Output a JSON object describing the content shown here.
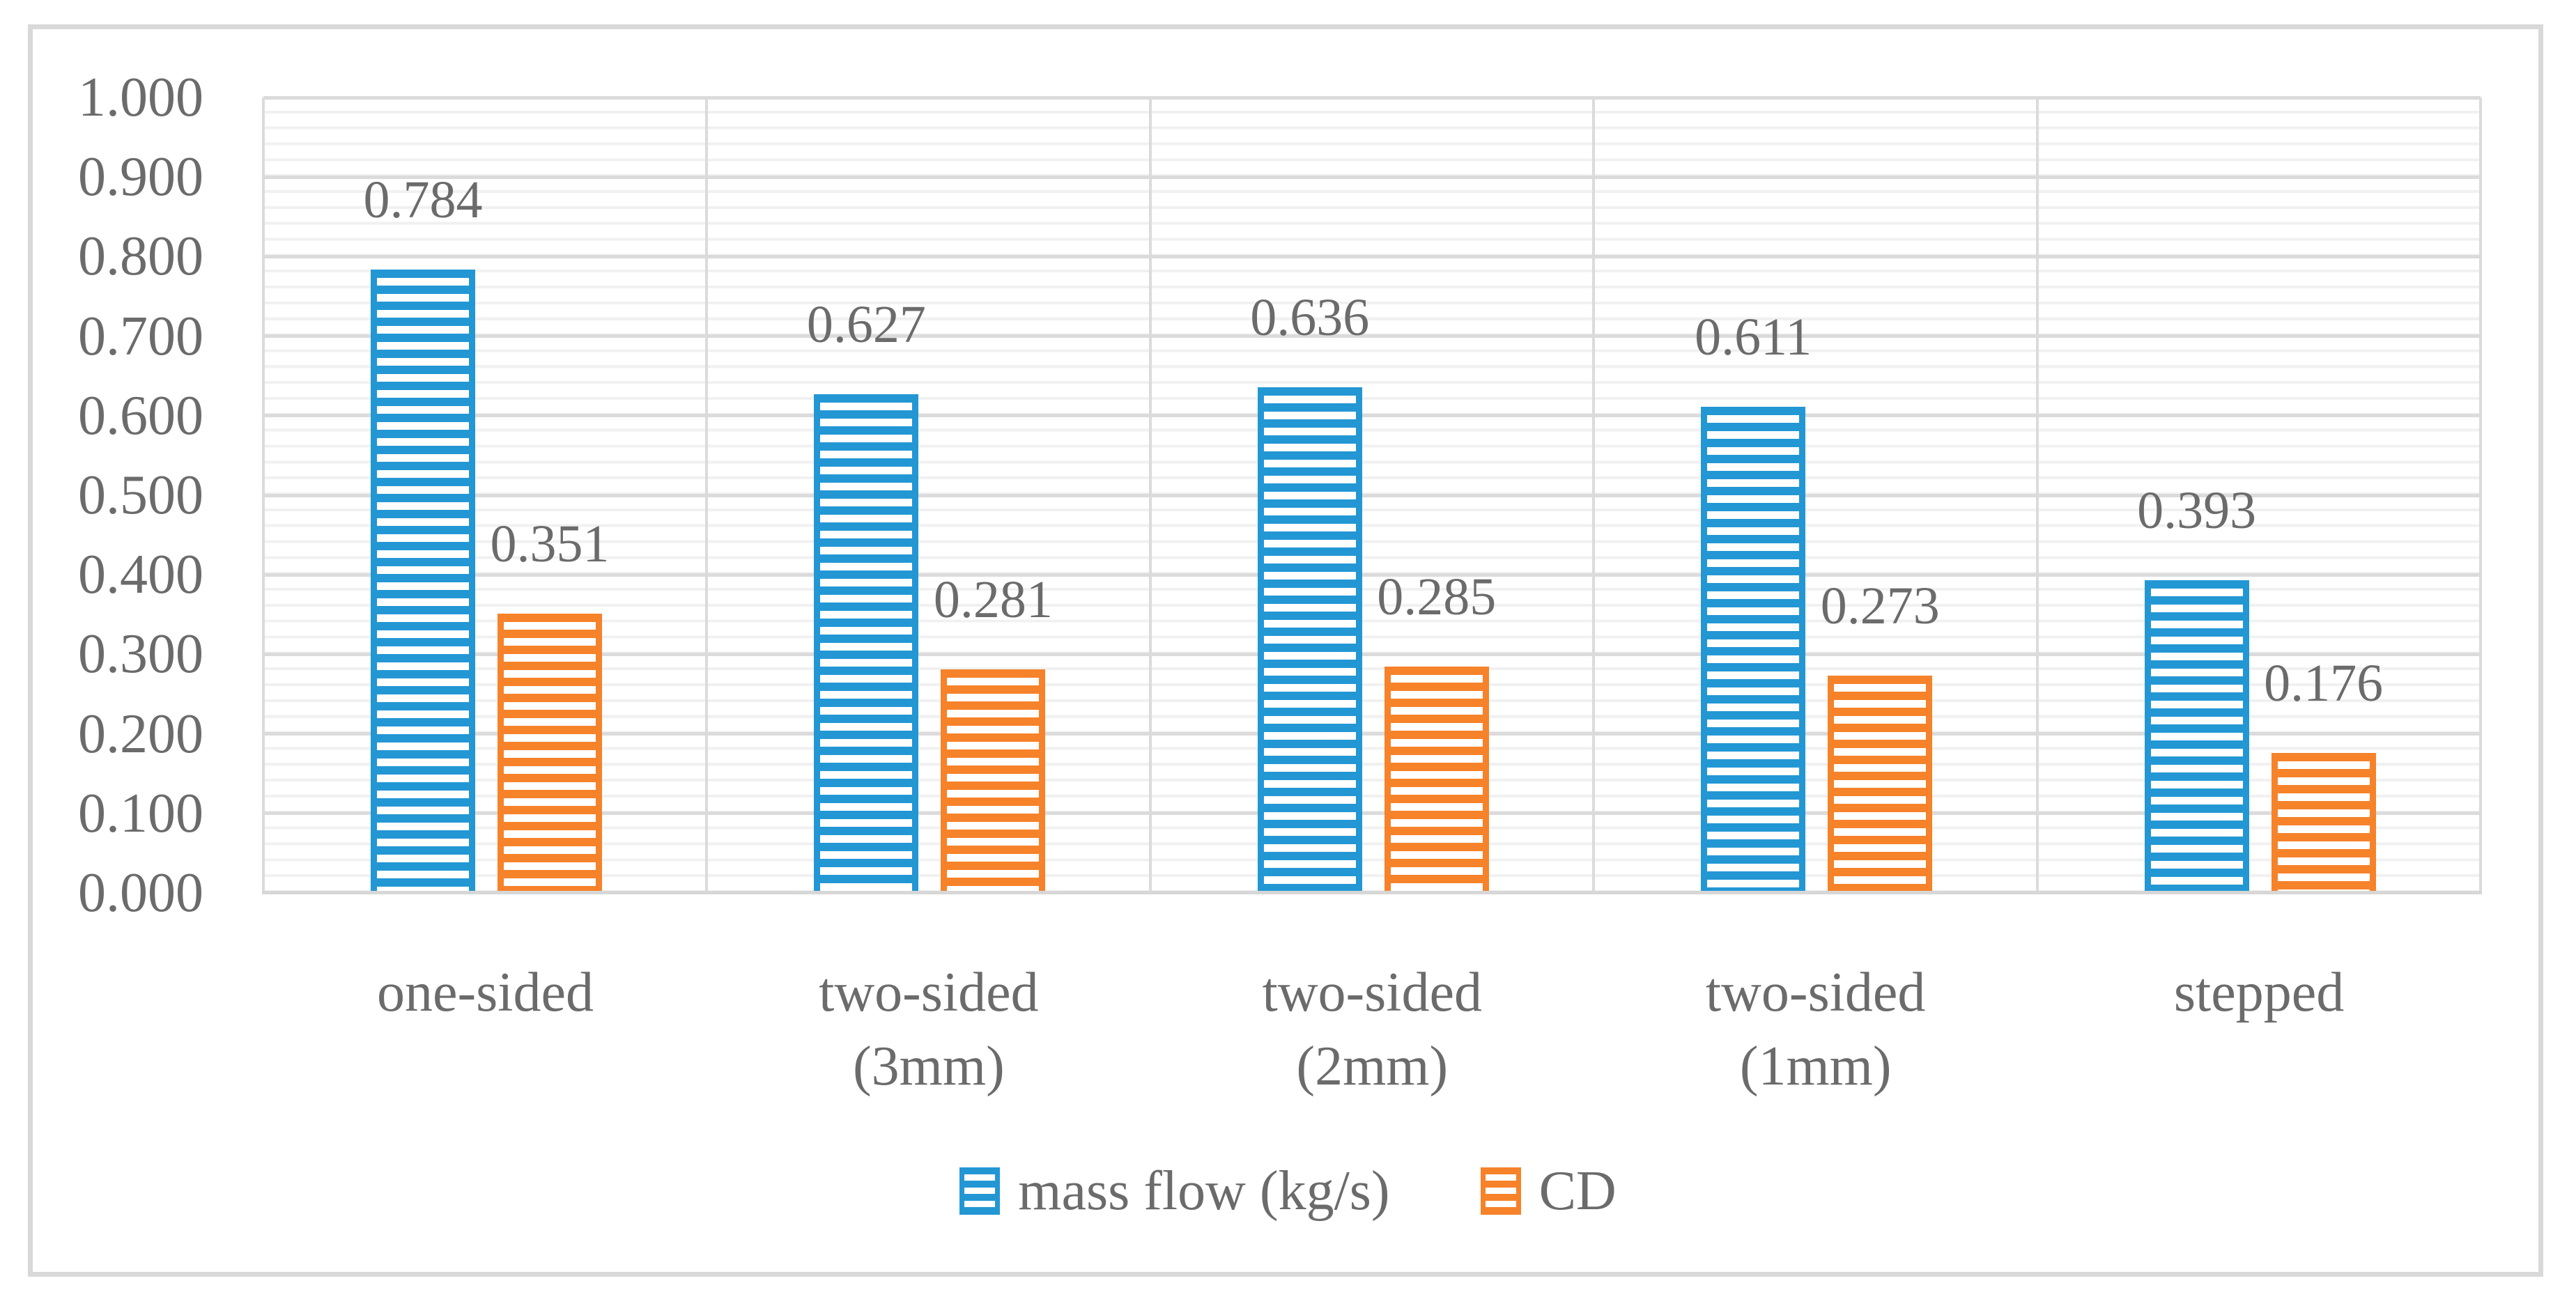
{
  "chart_data": {
    "type": "bar",
    "title": "",
    "categories": [
      {
        "lines": [
          "one-sided",
          ""
        ]
      },
      {
        "lines": [
          "two-sided",
          "(3mm)"
        ]
      },
      {
        "lines": [
          "two-sided",
          "(2mm)"
        ]
      },
      {
        "lines": [
          "two-sided",
          "(1mm)"
        ]
      },
      {
        "lines": [
          "stepped",
          ""
        ]
      }
    ],
    "series": [
      {
        "name": "mass flow (kg/s)",
        "color": "#2397D4",
        "pattern": "light-horizontal",
        "values": [
          0.784,
          0.627,
          0.636,
          0.611,
          0.393
        ],
        "labels": [
          "0.784",
          "0.627",
          "0.636",
          "0.611",
          "0.393"
        ]
      },
      {
        "name": "CD",
        "color": "#F6822A",
        "pattern": "light-horizontal",
        "values": [
          0.351,
          0.281,
          0.285,
          0.273,
          0.176
        ],
        "labels": [
          "0.351",
          "0.281",
          "0.285",
          "0.273",
          "0.176"
        ]
      }
    ],
    "y_axis": {
      "min": 0.0,
      "max": 1.0,
      "major_unit": 0.1,
      "minor_unit": 0.02,
      "tick_labels": [
        "1.000",
        "0.900",
        "0.800",
        "0.700",
        "0.600",
        "0.500",
        "0.400",
        "0.300",
        "0.200",
        "0.100",
        "0.000"
      ]
    },
    "xlabel": "",
    "ylabel": "",
    "grid": true,
    "legend_position": "bottom"
  },
  "colors": {
    "series_mass_flow": "#2397D4",
    "series_cd": "#F6822A",
    "major_grid": "#DBDBDB",
    "minor_grid": "#F1F1F1",
    "axis_line": "#D7D7D7",
    "frame_border": "#D9D9D9",
    "text": "#6B6B6B",
    "background": "#FFFFFF"
  }
}
